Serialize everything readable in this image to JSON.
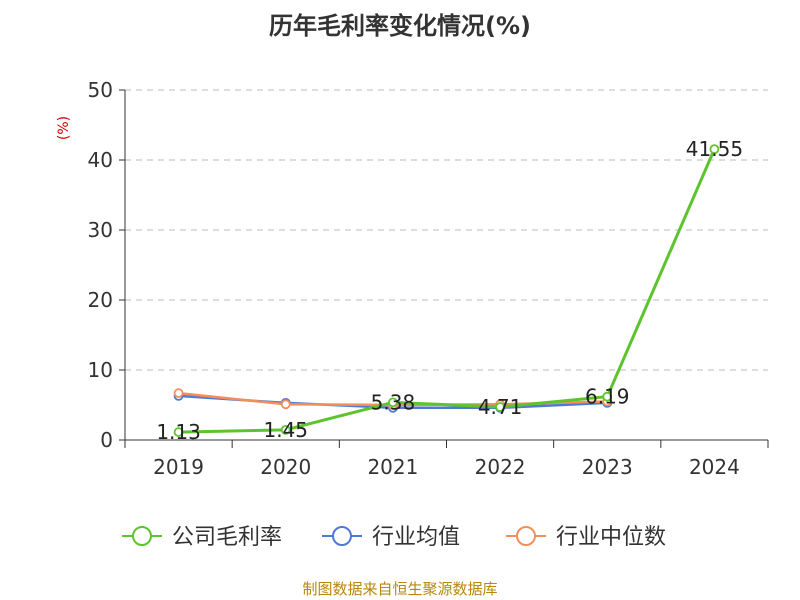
{
  "source_note": "制图数据来自恒生聚源数据库",
  "chart_data": {
    "type": "line",
    "title": "历年毛利率变化情况(%)",
    "ylabel": "(%)",
    "xlabel": "",
    "x": [
      "2019",
      "2020",
      "2021",
      "2022",
      "2023",
      "2024"
    ],
    "ylim": [
      0,
      50
    ],
    "yticks": [
      0,
      10,
      20,
      30,
      40,
      50
    ],
    "grid": true,
    "legend_position": "bottom",
    "series": [
      {
        "name": "公司毛利率",
        "color": "#5dc42e",
        "values": [
          1.13,
          1.45,
          5.38,
          4.71,
          6.19,
          41.55
        ],
        "labels": [
          "1.13",
          "1.45",
          "5.38",
          "4.71",
          "6.19",
          "41.55"
        ]
      },
      {
        "name": "行业均值",
        "color": "#4e79d6",
        "values": [
          6.3,
          5.3,
          4.6,
          4.6,
          5.3,
          null
        ]
      },
      {
        "name": "行业中位数",
        "color": "#f28e5c",
        "values": [
          6.7,
          5.1,
          5.0,
          5.1,
          5.5,
          null
        ]
      }
    ]
  }
}
